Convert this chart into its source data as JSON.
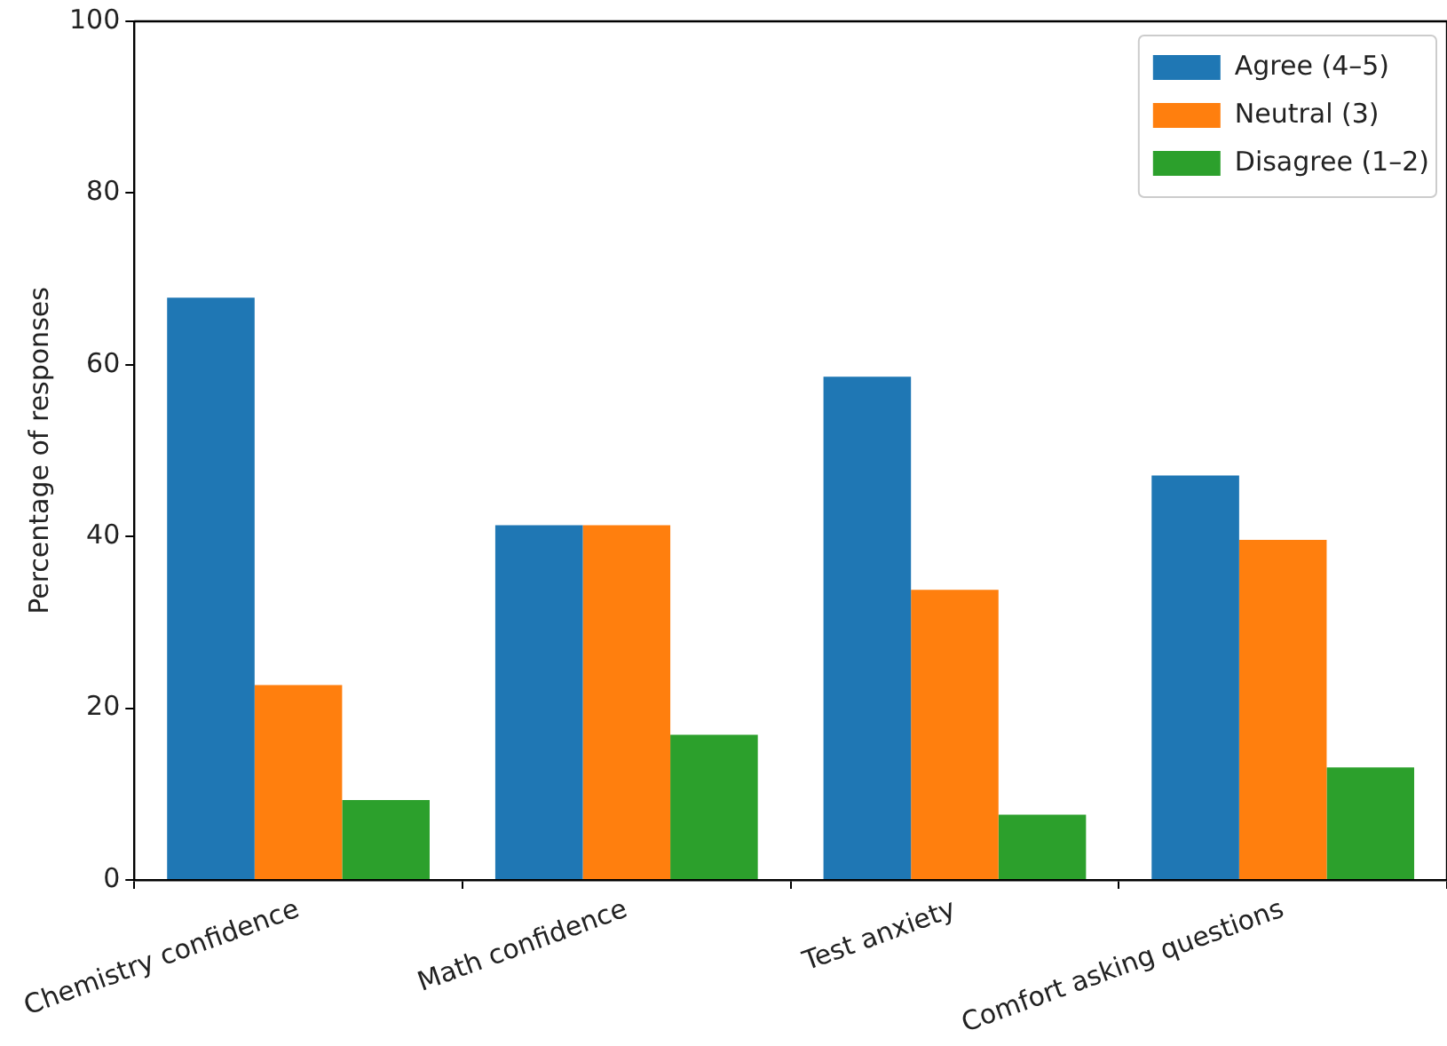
{
  "chart_data": {
    "type": "bar",
    "ylabel": "Percentage of responses",
    "categories": [
      "Chemistry confidence",
      "Math confidence",
      "Test anxiety",
      "Comfort asking questions"
    ],
    "series": [
      {
        "name": "Agree (4–5)",
        "color": "#1f77b4",
        "values": [
          67.8,
          41.3,
          58.6,
          47.1
        ]
      },
      {
        "name": "Neutral (3)",
        "color": "#ff7f0e",
        "values": [
          22.7,
          41.3,
          33.8,
          39.6
        ]
      },
      {
        "name": "Disagree (1–2)",
        "color": "#2ca02c",
        "values": [
          9.3,
          16.9,
          7.6,
          13.1
        ]
      }
    ],
    "ylim": [
      0,
      100
    ],
    "yticks": [
      0,
      20,
      40,
      60,
      80,
      100
    ],
    "grid": false,
    "legend": "top right"
  }
}
